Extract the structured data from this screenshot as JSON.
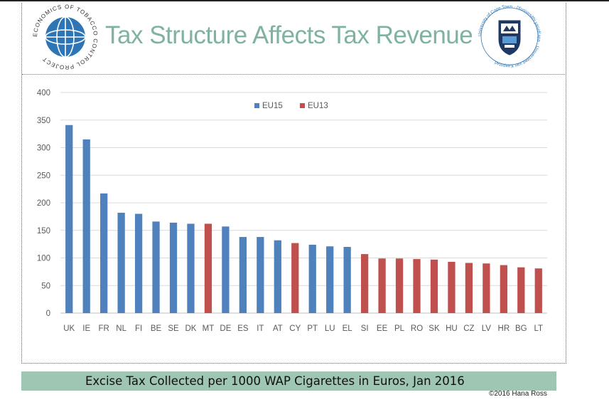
{
  "slide": {
    "title": "Tax Structure Affects Tax Revenue",
    "caption": "Excise Tax Collected per 1000 WAP Cigarettes in Euros, Jan 2016",
    "copyright": "©2016 Hana Ross"
  },
  "logos": {
    "left": {
      "icon": "globe-logo-icon",
      "text": "ECONOMICS OF TOBACCO CONTROL PROJECT"
    },
    "right": {
      "icon": "university-crest-icon",
      "text": "University of Cape Town · IYunivesithi yaseKapa · Universiteit van Kaapstad"
    }
  },
  "colors": {
    "EU15": "#4f81bd",
    "EU13": "#c0504d",
    "title": "#7fb3a0",
    "caption_bg": "#9fc5b3"
  },
  "chart_data": {
    "type": "bar",
    "title": "",
    "xlabel": "",
    "ylabel": "",
    "ylim": [
      0,
      400
    ],
    "yticks": [
      0,
      50,
      100,
      150,
      200,
      250,
      300,
      350,
      400
    ],
    "grid": true,
    "legend": {
      "position": "top-center",
      "entries": [
        "EU15",
        "EU13"
      ]
    },
    "categories": [
      "UK",
      "IE",
      "FR",
      "NL",
      "FI",
      "BE",
      "SE",
      "DK",
      "MT",
      "DE",
      "ES",
      "IT",
      "AT",
      "CY",
      "PT",
      "LU",
      "EL",
      "SI",
      "EE",
      "PL",
      "RO",
      "SK",
      "HU",
      "CZ",
      "LV",
      "HR",
      "BG",
      "LT"
    ],
    "groups": [
      "EU15",
      "EU15",
      "EU15",
      "EU15",
      "EU15",
      "EU15",
      "EU15",
      "EU15",
      "EU13",
      "EU15",
      "EU15",
      "EU15",
      "EU15",
      "EU13",
      "EU15",
      "EU15",
      "EU15",
      "EU13",
      "EU13",
      "EU13",
      "EU13",
      "EU13",
      "EU13",
      "EU13",
      "EU13",
      "EU13",
      "EU13",
      "EU13"
    ],
    "values": [
      341,
      315,
      217,
      182,
      180,
      166,
      164,
      162,
      162,
      157,
      138,
      138,
      132,
      127,
      124,
      121,
      120,
      107,
      99,
      99,
      98,
      97,
      93,
      91,
      90,
      87,
      83,
      81
    ]
  }
}
